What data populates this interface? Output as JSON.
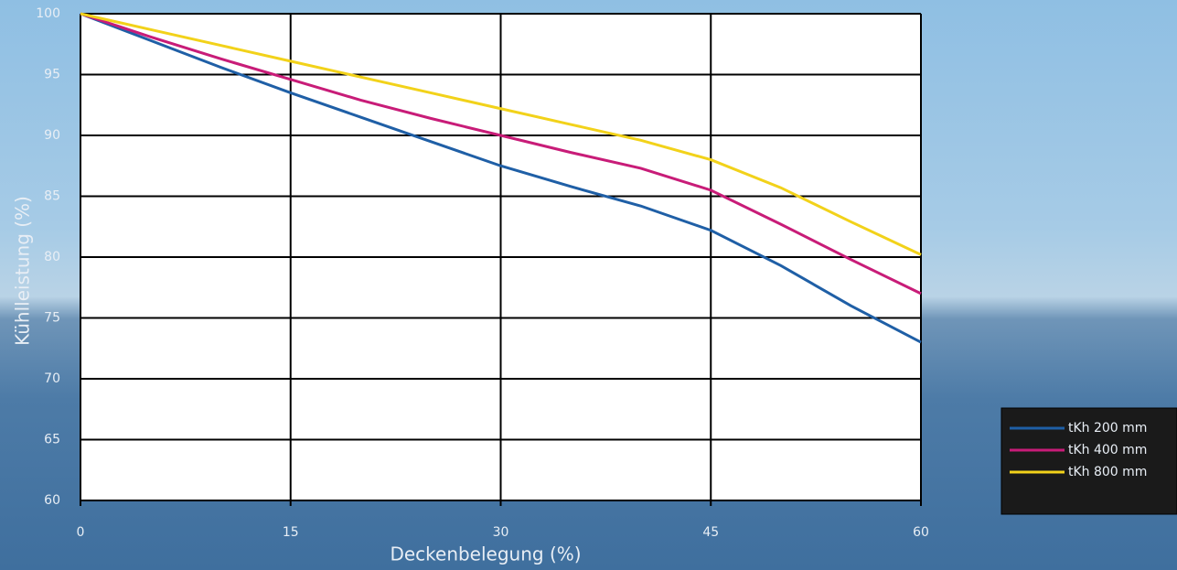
{
  "chart_data": {
    "type": "line",
    "x_label": "Deckenbelegung (%)",
    "y_label": "Kühlleistung (%)",
    "x": [
      0,
      5,
      10,
      15,
      20,
      25,
      30,
      35,
      40,
      45,
      50,
      55,
      60
    ],
    "series": [
      {
        "name": "tKh 200 mm",
        "color": "#1f5fa6",
        "values": [
          100,
          97.8,
          95.6,
          93.5,
          91.5,
          89.5,
          87.5,
          85.8,
          84.2,
          82.2,
          79.3,
          76.0,
          73.0
        ]
      },
      {
        "name": "tKh 400 mm",
        "color": "#c81c78",
        "values": [
          100,
          98.1,
          96.3,
          94.6,
          92.9,
          91.4,
          90.0,
          88.6,
          87.3,
          85.5,
          82.7,
          79.8,
          77.0
        ]
      },
      {
        "name": "tKh 800 mm",
        "color": "#f2d21a",
        "values": [
          100,
          98.7,
          97.4,
          96.1,
          94.8,
          93.5,
          92.2,
          90.9,
          89.6,
          88.0,
          85.7,
          82.9,
          80.2
        ]
      }
    ],
    "xlim": [
      0,
      60
    ],
    "xticks": [
      0,
      15,
      30,
      45,
      60
    ],
    "ylim": [
      60,
      100
    ],
    "yticks": [
      60,
      65,
      70,
      75,
      80,
      85,
      90,
      95,
      100
    ],
    "grid": true,
    "legend": "lower right"
  }
}
